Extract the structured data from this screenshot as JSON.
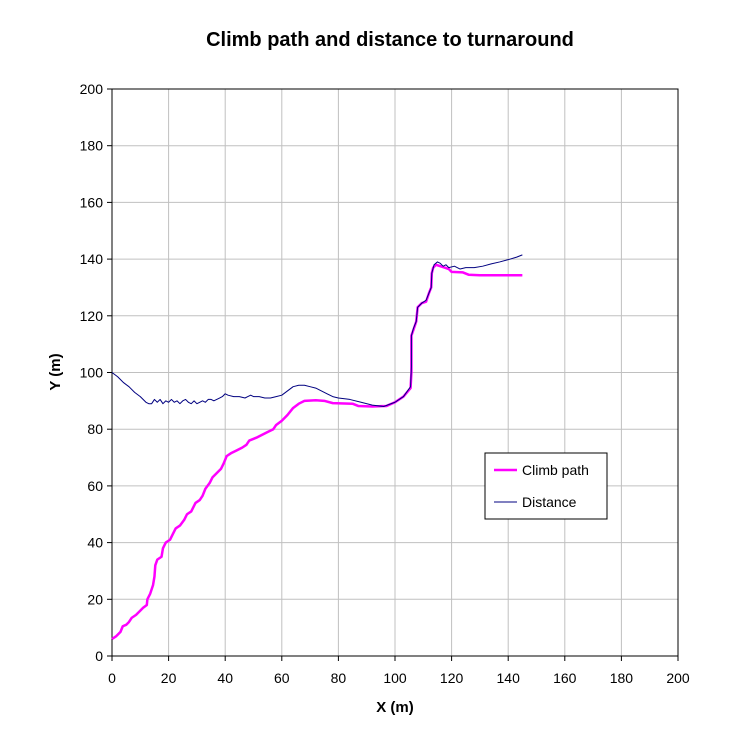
{
  "chart_data": {
    "type": "line",
    "title": "Climb path and distance to turnaround",
    "xlabel": "X (m)",
    "ylabel": "Y (m)",
    "xlim": [
      0,
      200
    ],
    "ylim": [
      0,
      200
    ],
    "xticks": [
      0,
      20,
      40,
      60,
      80,
      100,
      120,
      140,
      160,
      180,
      200
    ],
    "yticks": [
      0,
      20,
      40,
      60,
      80,
      100,
      120,
      140,
      160,
      180,
      200
    ],
    "grid": true,
    "legend_position": "right",
    "series": [
      {
        "name": "Climb path",
        "color": "#ff00ff",
        "points": [
          [
            0,
            6
          ],
          [
            1.5,
            7
          ],
          [
            3,
            8.5
          ],
          [
            3.8,
            10.5
          ],
          [
            5,
            11
          ],
          [
            6,
            12
          ],
          [
            7,
            13.5
          ],
          [
            8.5,
            14.5
          ],
          [
            10,
            16
          ],
          [
            11,
            17
          ],
          [
            12.3,
            18
          ],
          [
            12.5,
            20
          ],
          [
            13.5,
            22
          ],
          [
            14.5,
            25
          ],
          [
            15,
            28
          ],
          [
            15.3,
            32
          ],
          [
            16,
            34
          ],
          [
            17.5,
            35
          ],
          [
            18,
            38
          ],
          [
            19,
            40
          ],
          [
            20.5,
            41
          ],
          [
            21.5,
            43
          ],
          [
            22.5,
            45
          ],
          [
            24,
            46
          ],
          [
            25.5,
            48
          ],
          [
            26.5,
            50
          ],
          [
            28,
            51
          ],
          [
            29.5,
            54
          ],
          [
            31,
            55
          ],
          [
            32,
            56.5
          ],
          [
            33,
            59
          ],
          [
            34.5,
            61
          ],
          [
            35.5,
            63
          ],
          [
            37,
            64.5
          ],
          [
            38.5,
            66
          ],
          [
            39.5,
            68
          ],
          [
            40.5,
            70.5
          ],
          [
            42,
            71.5
          ],
          [
            44,
            72.5
          ],
          [
            46,
            73.5
          ],
          [
            47.5,
            74.5
          ],
          [
            48.5,
            76
          ],
          [
            51,
            77
          ],
          [
            53,
            78
          ],
          [
            55,
            79
          ],
          [
            57,
            80
          ],
          [
            58,
            81.5
          ],
          [
            60,
            83
          ],
          [
            62,
            85
          ],
          [
            64,
            87.5
          ],
          [
            66,
            89
          ],
          [
            68,
            90
          ],
          [
            72,
            90.2
          ],
          [
            75,
            90
          ],
          [
            78,
            89.2
          ],
          [
            85,
            89
          ],
          [
            87,
            88.2
          ],
          [
            92,
            88
          ],
          [
            97,
            88.2
          ],
          [
            100,
            89.5
          ],
          [
            103,
            91.5
          ],
          [
            105.5,
            94.5
          ],
          [
            105.8,
            100
          ],
          [
            105.8,
            113
          ],
          [
            106.5,
            115
          ],
          [
            107.5,
            118
          ],
          [
            108,
            123
          ],
          [
            109.5,
            124.5
          ],
          [
            111,
            125
          ],
          [
            112,
            128
          ],
          [
            112.8,
            130
          ],
          [
            113,
            135
          ],
          [
            113.5,
            137
          ],
          [
            114.5,
            138
          ],
          [
            116,
            137.5
          ],
          [
            117.5,
            137
          ],
          [
            119,
            136.5
          ],
          [
            120,
            135.5
          ],
          [
            124,
            135.3
          ],
          [
            126,
            134.5
          ],
          [
            130,
            134.3
          ],
          [
            145,
            134.3
          ]
        ]
      },
      {
        "name": "Distance",
        "color": "#000080",
        "points": [
          [
            0,
            100
          ],
          [
            2,
            98.5
          ],
          [
            4,
            96.5
          ],
          [
            6,
            95
          ],
          [
            8,
            93
          ],
          [
            10,
            91.5
          ],
          [
            12,
            89.5
          ],
          [
            13,
            89
          ],
          [
            14,
            89
          ],
          [
            15,
            90.5
          ],
          [
            16,
            89.5
          ],
          [
            17,
            90.5
          ],
          [
            18,
            89
          ],
          [
            19,
            90
          ],
          [
            20,
            89.5
          ],
          [
            21,
            90.5
          ],
          [
            22,
            89.5
          ],
          [
            23,
            90
          ],
          [
            24,
            89
          ],
          [
            25,
            90
          ],
          [
            26,
            90.5
          ],
          [
            27,
            89.5
          ],
          [
            28,
            89
          ],
          [
            29,
            90
          ],
          [
            30,
            89
          ],
          [
            31,
            89.5
          ],
          [
            32,
            90
          ],
          [
            33,
            89.5
          ],
          [
            34,
            90.5
          ],
          [
            35,
            90.5
          ],
          [
            36,
            90
          ],
          [
            37,
            90.5
          ],
          [
            38,
            91
          ],
          [
            39,
            91.5
          ],
          [
            40,
            92.5
          ],
          [
            41,
            92
          ],
          [
            43,
            91.5
          ],
          [
            45,
            91.5
          ],
          [
            47,
            91
          ],
          [
            48,
            91.5
          ],
          [
            49,
            92
          ],
          [
            50,
            91.5
          ],
          [
            52,
            91.5
          ],
          [
            54,
            91
          ],
          [
            56,
            91
          ],
          [
            58,
            91.5
          ],
          [
            60,
            92
          ],
          [
            62,
            93.5
          ],
          [
            64,
            95
          ],
          [
            66,
            95.5
          ],
          [
            68,
            95.5
          ],
          [
            70,
            95
          ],
          [
            72,
            94.5
          ],
          [
            74,
            93.5
          ],
          [
            76,
            92.5
          ],
          [
            78,
            91.5
          ],
          [
            80,
            91
          ],
          [
            84,
            90.5
          ],
          [
            88,
            89.5
          ],
          [
            92,
            88.5
          ],
          [
            96,
            88
          ],
          [
            100,
            89.5
          ],
          [
            103,
            91.5
          ],
          [
            105.5,
            95
          ],
          [
            105.8,
            102
          ],
          [
            105.8,
            113
          ],
          [
            106.5,
            115.5
          ],
          [
            107.5,
            118
          ],
          [
            108,
            123
          ],
          [
            109.5,
            124.5
          ],
          [
            111,
            125.5
          ],
          [
            112,
            128
          ],
          [
            112.8,
            130
          ],
          [
            113,
            135
          ],
          [
            113.8,
            138
          ],
          [
            115,
            139
          ],
          [
            116,
            138.5
          ],
          [
            117,
            137.5
          ],
          [
            118,
            138
          ],
          [
            119,
            137
          ],
          [
            121,
            137.5
          ],
          [
            123,
            136.5
          ],
          [
            125,
            137
          ],
          [
            128,
            137
          ],
          [
            131,
            137.5
          ],
          [
            134,
            138.3
          ],
          [
            137,
            139
          ],
          [
            140,
            139.8
          ],
          [
            143,
            140.7
          ],
          [
            145,
            141.5
          ]
        ]
      }
    ]
  }
}
